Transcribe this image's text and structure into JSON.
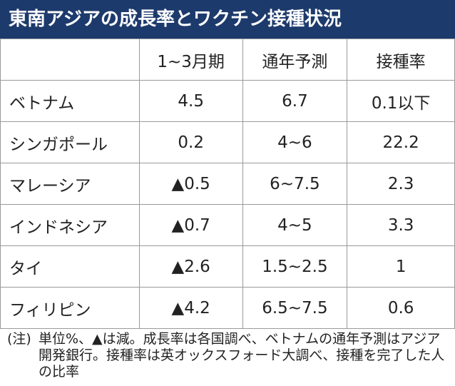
{
  "title": "東南アジアの成長率とワクチン接種状況",
  "table": {
    "columns": [
      "1~3月期",
      "通年予測",
      "接種率"
    ],
    "rows": [
      [
        "ベトナム",
        "4.5",
        "6.7",
        "0.1以下"
      ],
      [
        "シンガポール",
        "0.2",
        "4~6",
        "22.2"
      ],
      [
        "マレーシア",
        "▲0.5",
        "6~7.5",
        "2.3"
      ],
      [
        "インドネシア",
        "▲0.7",
        "4~5",
        "3.3"
      ],
      [
        "タイ",
        "▲2.6",
        "1.5~2.5",
        "1"
      ],
      [
        "フィリピン",
        "▲4.2",
        "6.5~7.5",
        "0.6"
      ]
    ]
  },
  "note": {
    "label": "(注)",
    "text": "単位%、▲は減。成長率は各国調べ、ベトナムの通年予測はアジア開発銀行。接種率は英オックスフォード大調べ、接種を完了した人の比率"
  }
}
